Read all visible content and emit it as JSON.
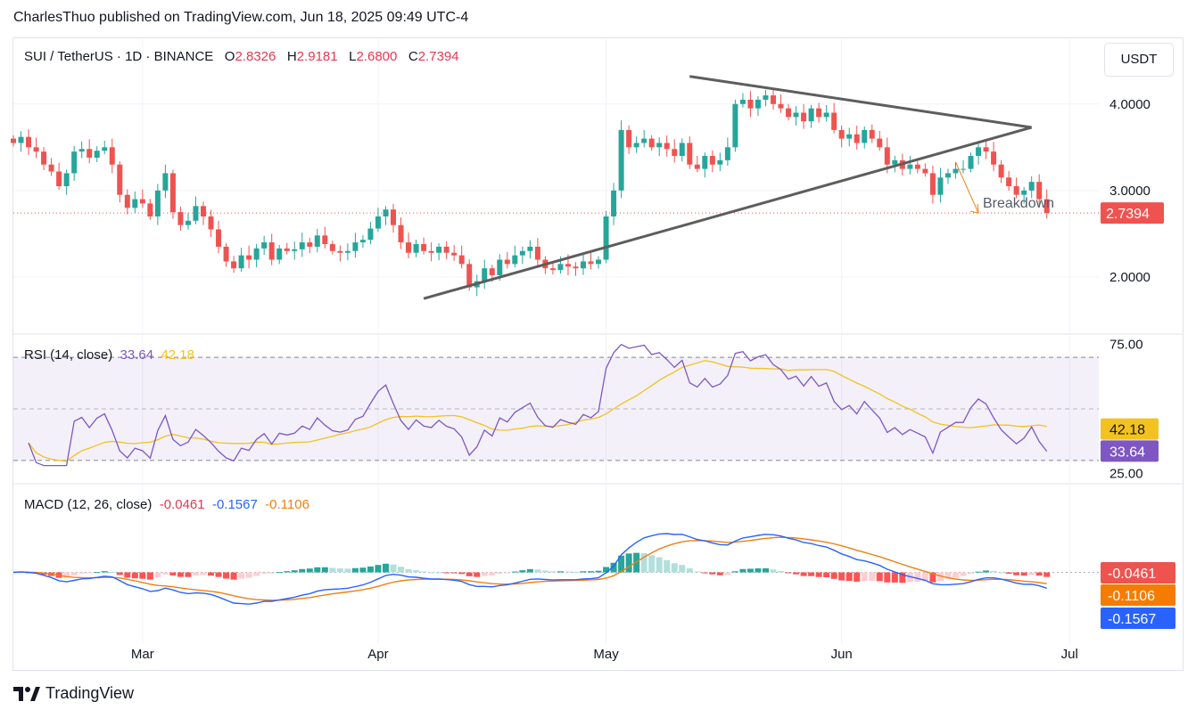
{
  "publisher_line": "CharlesThuo published on TradingView.com, Jun 18, 2025 09:49 UTC-4",
  "brand": "TradingView",
  "currency_button": "USDT",
  "legend": {
    "symbol": "SUI / TetherUS · 1D · BINANCE",
    "o_label": "O",
    "o_value": "2.8326",
    "h_label": "H",
    "h_value": "2.9181",
    "l_label": "L",
    "l_value": "2.6800",
    "c_label": "C",
    "c_value": "2.7394"
  },
  "rsi_legend": {
    "label": "RSI (14, close)",
    "rsi": "33.64",
    "ma": "42.18"
  },
  "macd_legend": {
    "label": "MACD (12, 26, close)",
    "hist": "-0.0461",
    "macd": "-0.1567",
    "signal": "-0.1106"
  },
  "colors": {
    "up": "#26a69a",
    "down": "#ef5350",
    "rsi": "#7e57c2",
    "rsi_ma": "#f3c220",
    "macd": "#2962ff",
    "signal": "#f07f12",
    "trendline": "#5d5d5d",
    "annotation": "#f07f12"
  },
  "chart_data": [
    {
      "type": "candlestick",
      "title": "SUI / TetherUS · 1D · BINANCE",
      "x_axis_labels": [
        "Mar",
        "Apr",
        "May",
        "Jun",
        "Jul"
      ],
      "y_ticks": [
        "2.0000",
        "3.0000",
        "4.0000"
      ],
      "ylim": [
        1.35,
        4.75
      ],
      "last_price": 2.7394,
      "last_price_label": "2.7394",
      "annotation": "Breakdown",
      "triangle_lines": [
        {
          "from": [
            "2025-04-07",
            1.75
          ],
          "to": [
            "2025-06-26",
            3.73
          ]
        },
        {
          "from": [
            "2025-05-12",
            4.32
          ],
          "to": [
            "2025-06-26",
            3.73
          ]
        }
      ],
      "closes": [
        3.55,
        3.62,
        3.5,
        3.45,
        3.3,
        3.22,
        3.05,
        3.2,
        3.45,
        3.48,
        3.38,
        3.46,
        3.5,
        3.3,
        2.95,
        2.8,
        2.9,
        2.85,
        2.7,
        3.0,
        3.2,
        2.75,
        2.6,
        2.65,
        2.82,
        2.7,
        2.55,
        2.35,
        2.18,
        2.1,
        2.25,
        2.2,
        2.33,
        2.4,
        2.2,
        2.33,
        2.3,
        2.32,
        2.4,
        2.35,
        2.48,
        2.38,
        2.3,
        2.28,
        2.3,
        2.4,
        2.43,
        2.56,
        2.7,
        2.78,
        2.6,
        2.4,
        2.28,
        2.38,
        2.3,
        2.28,
        2.35,
        2.28,
        2.25,
        2.15,
        1.88,
        1.95,
        2.1,
        2.02,
        2.2,
        2.15,
        2.25,
        2.3,
        2.35,
        2.2,
        2.1,
        2.08,
        2.15,
        2.12,
        2.1,
        2.18,
        2.15,
        2.2,
        2.7,
        3.0,
        3.7,
        3.5,
        3.55,
        3.6,
        3.5,
        3.55,
        3.48,
        3.4,
        3.55,
        3.3,
        3.25,
        3.4,
        3.3,
        3.35,
        3.5,
        4.0,
        4.05,
        3.95,
        4.05,
        4.1,
        4.0,
        3.95,
        3.85,
        3.9,
        3.8,
        3.95,
        3.85,
        3.9,
        3.7,
        3.6,
        3.65,
        3.55,
        3.7,
        3.6,
        3.5,
        3.3,
        3.35,
        3.25,
        3.3,
        3.25,
        3.2,
        2.95,
        3.15,
        3.2,
        3.25,
        3.25,
        3.4,
        3.5,
        3.45,
        3.3,
        3.15,
        3.05,
        2.95,
        3.0,
        3.1,
        2.9,
        2.74
      ]
    },
    {
      "type": "line",
      "title": "RSI (14, close)",
      "y_ticks": [
        "25.00",
        "75.00"
      ],
      "band": [
        30,
        70
      ],
      "middle": 50,
      "ylim": [
        22,
        78
      ],
      "series": [
        {
          "name": "RSI",
          "last": 33.64,
          "last_label": "33.64"
        },
        {
          "name": "RSI-based MA",
          "last": 42.18,
          "last_label": "42.18"
        }
      ]
    },
    {
      "type": "line",
      "title": "MACD (12, 26, close)",
      "y_ticks": [
        "0.0000"
      ],
      "ylim": [
        -0.65,
        0.78
      ],
      "series": [
        {
          "name": "Histogram",
          "last": -0.0461,
          "last_label": "-0.0461"
        },
        {
          "name": "MACD",
          "last": -0.1567,
          "last_label": "-0.1567"
        },
        {
          "name": "Signal",
          "last": -0.1106,
          "last_label": "-0.1106"
        }
      ]
    }
  ]
}
